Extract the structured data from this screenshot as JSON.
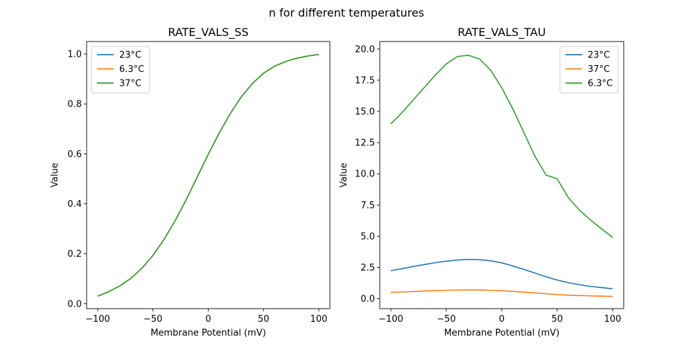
{
  "suptitle": "n for different temperatures",
  "chart_data": [
    {
      "type": "line",
      "title": "RATE_VALS_SS",
      "xlabel": "Membrane Potential (mV)",
      "ylabel": "Value",
      "xlim": [
        -110,
        110
      ],
      "ylim": [
        -0.02,
        1.05
      ],
      "xticks": [
        -100,
        -50,
        0,
        50,
        100
      ],
      "xtick_labels": [
        "−100",
        "−50",
        "0",
        "50",
        "100"
      ],
      "yticks": [
        0.0,
        0.2,
        0.4,
        0.6,
        0.8,
        1.0
      ],
      "ytick_labels": [
        "0.0",
        "0.2",
        "0.4",
        "0.6",
        "0.8",
        "1.0"
      ],
      "legend_position": "upper-left",
      "x": [
        -100,
        -90,
        -80,
        -70,
        -60,
        -50,
        -40,
        -30,
        -20,
        -10,
        0,
        10,
        20,
        30,
        40,
        50,
        60,
        70,
        80,
        90,
        100
      ],
      "series": [
        {
          "name": "23°C",
          "color": "#1f77b4",
          "values": [
            0.03,
            0.048,
            0.071,
            0.101,
            0.142,
            0.193,
            0.257,
            0.332,
            0.416,
            0.507,
            0.598,
            0.684,
            0.762,
            0.829,
            0.882,
            0.923,
            0.951,
            0.97,
            0.983,
            0.992,
            0.998
          ]
        },
        {
          "name": "6.3°C",
          "color": "#ff7f0e",
          "values": [
            0.03,
            0.048,
            0.071,
            0.101,
            0.142,
            0.193,
            0.257,
            0.332,
            0.416,
            0.507,
            0.598,
            0.684,
            0.762,
            0.829,
            0.882,
            0.923,
            0.951,
            0.97,
            0.983,
            0.992,
            0.998
          ]
        },
        {
          "name": "37°C",
          "color": "#2ca02c",
          "values": [
            0.03,
            0.048,
            0.071,
            0.101,
            0.142,
            0.193,
            0.257,
            0.332,
            0.416,
            0.507,
            0.598,
            0.684,
            0.762,
            0.829,
            0.882,
            0.923,
            0.951,
            0.97,
            0.983,
            0.992,
            0.998
          ]
        }
      ]
    },
    {
      "type": "line",
      "title": "RATE_VALS_TAU",
      "xlabel": "Membrane Potential (mV)",
      "ylabel": "Value",
      "xlim": [
        -110,
        110
      ],
      "ylim": [
        -0.8,
        20.6
      ],
      "xticks": [
        -100,
        -50,
        0,
        50,
        100
      ],
      "xtick_labels": [
        "−100",
        "−50",
        "0",
        "50",
        "100"
      ],
      "yticks": [
        0.0,
        2.5,
        5.0,
        7.5,
        10.0,
        12.5,
        15.0,
        17.5,
        20.0
      ],
      "ytick_labels": [
        "0.0",
        "2.5",
        "5.0",
        "7.5",
        "10.0",
        "12.5",
        "15.0",
        "17.5",
        "20.0"
      ],
      "legend_position": "upper-right",
      "x": [
        -100,
        -90,
        -80,
        -70,
        -60,
        -50,
        -40,
        -30,
        -20,
        -10,
        0,
        10,
        20,
        30,
        40,
        50,
        60,
        70,
        80,
        90,
        100
      ],
      "series": [
        {
          "name": "23°C",
          "color": "#1f77b4",
          "values": [
            2.25,
            2.4,
            2.57,
            2.73,
            2.88,
            3.0,
            3.1,
            3.14,
            3.12,
            3.03,
            2.87,
            2.62,
            2.34,
            2.05,
            1.75,
            1.49,
            1.28,
            1.12,
            0.98,
            0.89,
            0.79
          ]
        },
        {
          "name": "37°C",
          "color": "#ff7f0e",
          "values": [
            0.5,
            0.53,
            0.57,
            0.61,
            0.64,
            0.67,
            0.69,
            0.7,
            0.7,
            0.67,
            0.64,
            0.58,
            0.52,
            0.46,
            0.39,
            0.33,
            0.28,
            0.25,
            0.22,
            0.2,
            0.18
          ]
        },
        {
          "name": "6.3°C",
          "color": "#2ca02c",
          "values": [
            14.0,
            14.9,
            15.9,
            16.9,
            17.9,
            18.8,
            19.4,
            19.5,
            19.2,
            18.3,
            16.9,
            15.2,
            13.3,
            11.4,
            9.9,
            9.6,
            8.1,
            7.1,
            6.3,
            5.6,
            4.9
          ]
        }
      ]
    }
  ]
}
